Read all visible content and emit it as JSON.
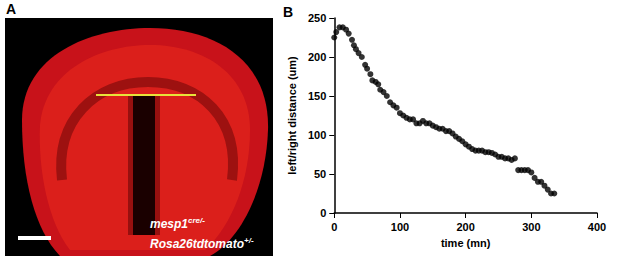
{
  "figure": {
    "panels": [
      {
        "label": "A",
        "caption_lines": [
          {
            "text": "mesp1",
            "sup": "cre/-"
          },
          {
            "text": "Rosa26tdtomato",
            "sup": "+/-"
          }
        ]
      }
    ]
  },
  "chart_data": {
    "type": "scatter",
    "title": "B",
    "x_label": "time (mn)",
    "y_label": "left/right distance (um)",
    "x": [
      0,
      3,
      8,
      13,
      18,
      22,
      27,
      30,
      33,
      37,
      42,
      47,
      50,
      55,
      58,
      63,
      67,
      70,
      75,
      80,
      85,
      90,
      95,
      100,
      105,
      110,
      115,
      120,
      125,
      130,
      135,
      140,
      145,
      150,
      155,
      160,
      165,
      170,
      175,
      180,
      185,
      190,
      195,
      200,
      205,
      210,
      215,
      220,
      225,
      230,
      235,
      240,
      245,
      250,
      255,
      260,
      265,
      270,
      275,
      280,
      285,
      290,
      295,
      300,
      305,
      310,
      315,
      320,
      325,
      330,
      335
    ],
    "values": [
      225,
      232,
      238,
      238,
      235,
      230,
      222,
      215,
      210,
      205,
      200,
      190,
      185,
      178,
      170,
      168,
      165,
      158,
      155,
      150,
      142,
      138,
      135,
      128,
      125,
      122,
      120,
      120,
      115,
      115,
      118,
      115,
      115,
      112,
      110,
      108,
      108,
      105,
      105,
      102,
      98,
      95,
      92,
      88,
      85,
      82,
      80,
      80,
      80,
      78,
      78,
      77,
      75,
      72,
      72,
      70,
      70,
      68,
      70,
      55,
      55,
      55,
      55,
      52,
      45,
      40,
      40,
      35,
      30,
      25,
      25
    ],
    "color": "#000000",
    "marker": "circle",
    "xlim": [
      0,
      400
    ],
    "xticks": [
      0,
      100,
      200,
      300,
      400
    ],
    "ylim": [
      0,
      250
    ],
    "yticks": [
      0,
      50,
      100,
      150,
      200,
      250
    ],
    "grid": false
  }
}
